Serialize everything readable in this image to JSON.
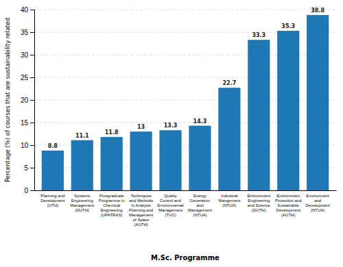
{
  "chart_data": {
    "type": "bar",
    "categories": [
      "Planning and\nDevelopment\n(UTH)",
      "Systems\nEngineering\nManagement\n(DUTH)",
      "Postgraduate\nProgramme in\nChemical\nEngineering\n(UPATRAS)",
      "Techniques\nand Methods\nin Analysis\nPlanning and\nManagement\nof Space\n(AUTH)",
      "Quality\nControl and\nEnvironmental\nManagement\n(TUC)",
      "Energy\nGeneration\nand\nManagement\n(NTUA)",
      "Industrial\nMangement\n(NTUA)",
      "Environment\nEngineering\nand Science\n(DUTH)",
      "Environment\nProtection and\nSustainable\nDevelopment\n(AUTH)",
      "Environment\nand\nDevelopment\n(NTUA)"
    ],
    "values": [
      8.8,
      11.1,
      11.8,
      13.0,
      13.3,
      14.3,
      22.7,
      33.3,
      35.3,
      38.8
    ],
    "xlabel": "M.Sc. Programme",
    "ylabel": "Percentage (%) of courses that are sustainability related",
    "ylim": [
      0,
      40
    ],
    "yticks": [
      0,
      5,
      10,
      15,
      20,
      25,
      30,
      35,
      40
    ],
    "grid": true,
    "data_labels": true
  }
}
